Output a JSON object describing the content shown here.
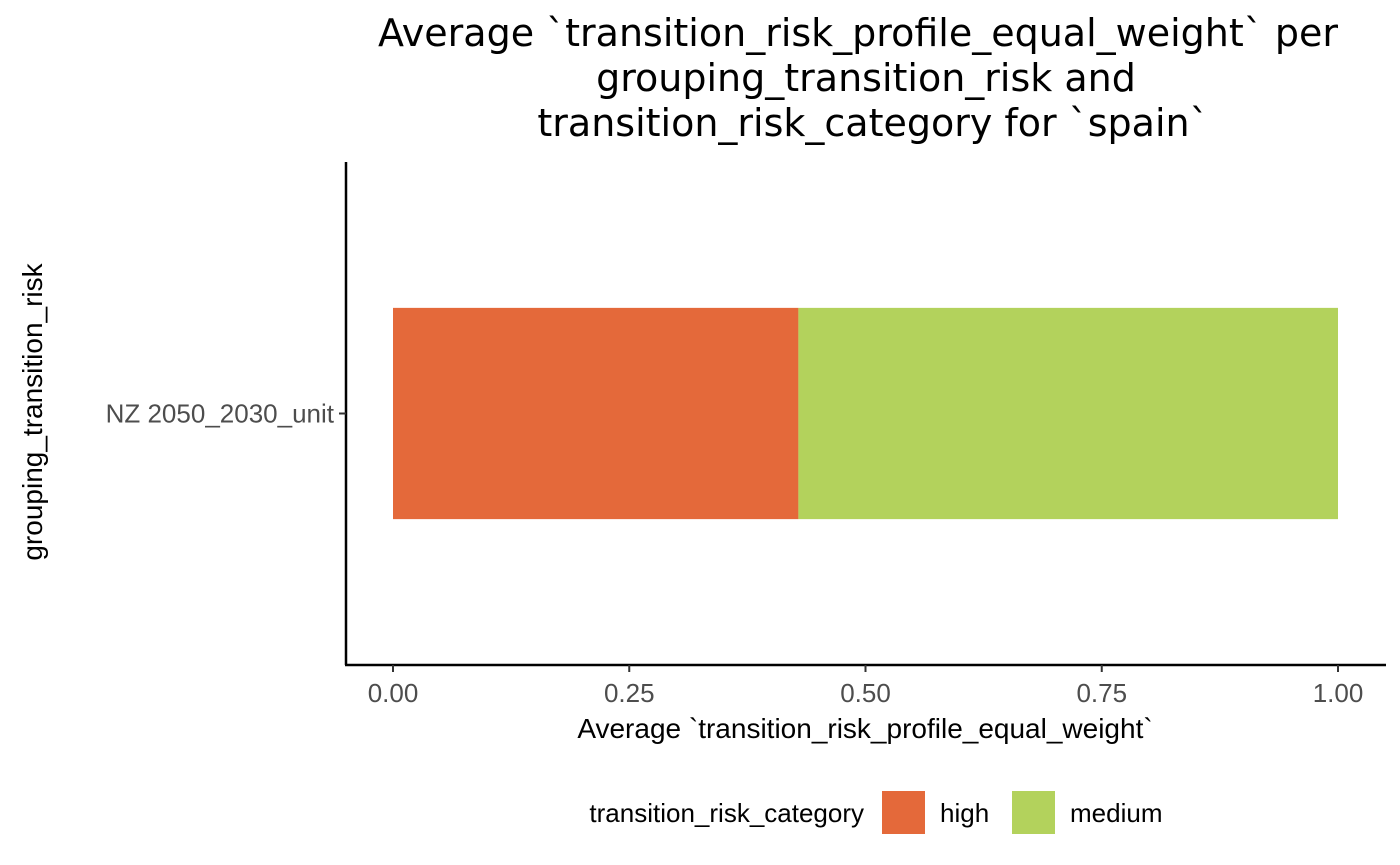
{
  "chart_data": {
    "type": "bar",
    "orientation": "horizontal",
    "stacked": true,
    "title_lines": [
      "Average `transition_risk_profile_equal_weight` per",
      "grouping_transition_risk and",
      "transition_risk_category for `spain`"
    ],
    "xlabel": "Average `transition_risk_profile_equal_weight`",
    "ylabel": "grouping_transition_risk",
    "categories": [
      "NZ 2050_2030_unit"
    ],
    "xlim": [
      0,
      1
    ],
    "xticks": [
      {
        "value": 0,
        "label": "0.00"
      },
      {
        "value": 0.25,
        "label": "0.25"
      },
      {
        "value": 0.5,
        "label": "0.50"
      },
      {
        "value": 0.75,
        "label": "0.75"
      },
      {
        "value": 1,
        "label": "1.00"
      }
    ],
    "series": [
      {
        "name": "high",
        "color": "#E4693A",
        "values": [
          0.429
        ]
      },
      {
        "name": "medium",
        "color": "#B3D25C",
        "values": [
          0.571
        ]
      }
    ],
    "legend": {
      "title": "transition_risk_category",
      "position": "bottom"
    },
    "grid": false
  }
}
